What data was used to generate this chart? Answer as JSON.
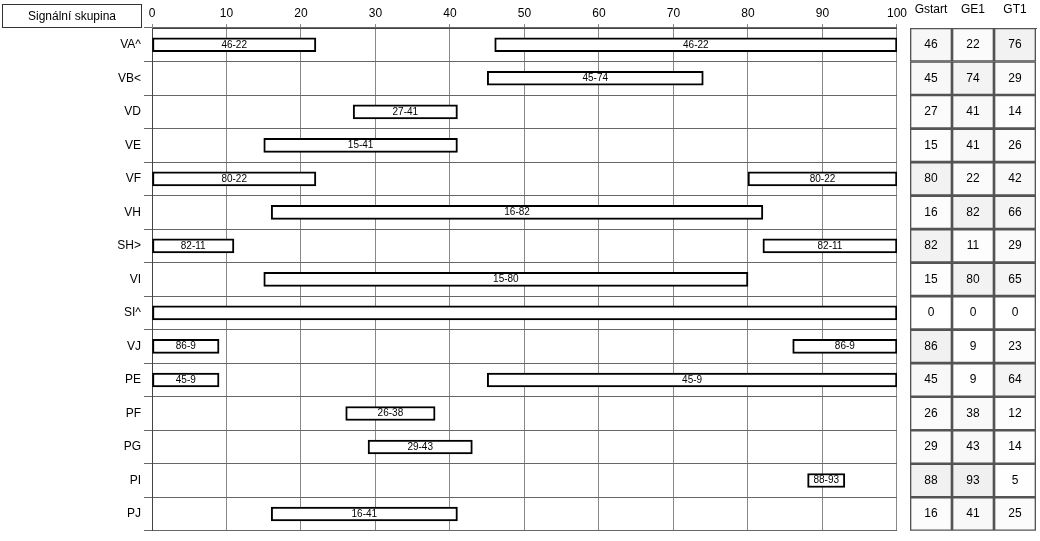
{
  "chart_data": [
    {
      "type": "bar",
      "orientation": "horizontal",
      "ylabel": "Signální skupina",
      "categories": [
        "VA^",
        "VB<",
        "VD",
        "VE",
        "VF",
        "VH",
        "SH>",
        "VI",
        "SI^",
        "VJ",
        "PE",
        "PF",
        "PG",
        "PI",
        "PJ"
      ],
      "series": [
        {
          "color": "#ffffff",
          "base": [
            46,
            45,
            27,
            15,
            80,
            16,
            82,
            15,
            0,
            86,
            45,
            26,
            29,
            88,
            16
          ],
          "values": [
            54,
            29,
            14,
            26,
            20,
            66,
            18,
            65,
            100,
            14,
            55,
            12,
            14,
            5,
            25
          ],
          "value_labels": [
            "46-22",
            "45-74",
            "27-41",
            "15-41",
            "80-22",
            "16-82",
            "82-11",
            "15-80",
            null,
            "86-9",
            "45-9",
            "26-38",
            "29-43",
            "88-93",
            "16-41"
          ]
        },
        {
          "color": "#ffffff",
          "base": [
            0,
            null,
            null,
            null,
            0,
            null,
            0,
            null,
            null,
            0,
            0,
            null,
            null,
            null,
            null
          ],
          "values": [
            22,
            null,
            null,
            null,
            22,
            null,
            11,
            null,
            null,
            9,
            9,
            null,
            null,
            null,
            null
          ],
          "value_labels": [
            "46-22",
            null,
            null,
            null,
            "80-22",
            null,
            "82-11",
            null,
            null,
            "86-9",
            "45-9",
            null,
            null,
            null,
            null
          ]
        }
      ],
      "xlim": [
        0,
        100
      ],
      "xticks": [
        0,
        10,
        20,
        30,
        40,
        50,
        60,
        70,
        80,
        90,
        100
      ],
      "grid": true
    },
    {
      "type": "heatmap",
      "categories": [
        "Gstart",
        "GE1",
        "GT1"
      ],
      "y_categories": [
        null,
        null,
        null,
        null,
        null,
        null,
        null,
        null,
        null,
        null,
        null,
        null,
        null,
        null,
        null
      ],
      "cells": [
        [
          46,
          22,
          76
        ],
        [
          45,
          74,
          29
        ],
        [
          27,
          41,
          14
        ],
        [
          15,
          41,
          26
        ],
        [
          80,
          22,
          42
        ],
        [
          16,
          82,
          66
        ],
        [
          82,
          11,
          29
        ],
        [
          15,
          80,
          65
        ],
        [
          0,
          0,
          0
        ],
        [
          86,
          9,
          23
        ],
        [
          45,
          9,
          64
        ],
        [
          26,
          38,
          12
        ],
        [
          29,
          43,
          14
        ],
        [
          88,
          93,
          5
        ],
        [
          16,
          41,
          25
        ]
      ],
      "cell_labels": [
        [
          "46",
          "22",
          "76"
        ],
        [
          "45",
          "74",
          "29"
        ],
        [
          "27",
          "41",
          "14"
        ],
        [
          "15",
          "41",
          "26"
        ],
        [
          "80",
          "22",
          "42"
        ],
        [
          "16",
          "82",
          "66"
        ],
        [
          "82",
          "11",
          "29"
        ],
        [
          "15",
          "80",
          "65"
        ],
        [
          "0",
          "0",
          "0"
        ],
        [
          "86",
          "9",
          "23"
        ],
        [
          "45",
          "9",
          "64"
        ],
        [
          "26",
          "38",
          "12"
        ],
        [
          "29",
          "43",
          "14"
        ],
        [
          "88",
          "93",
          "5"
        ],
        [
          "16",
          "41",
          "25"
        ]
      ]
    }
  ]
}
